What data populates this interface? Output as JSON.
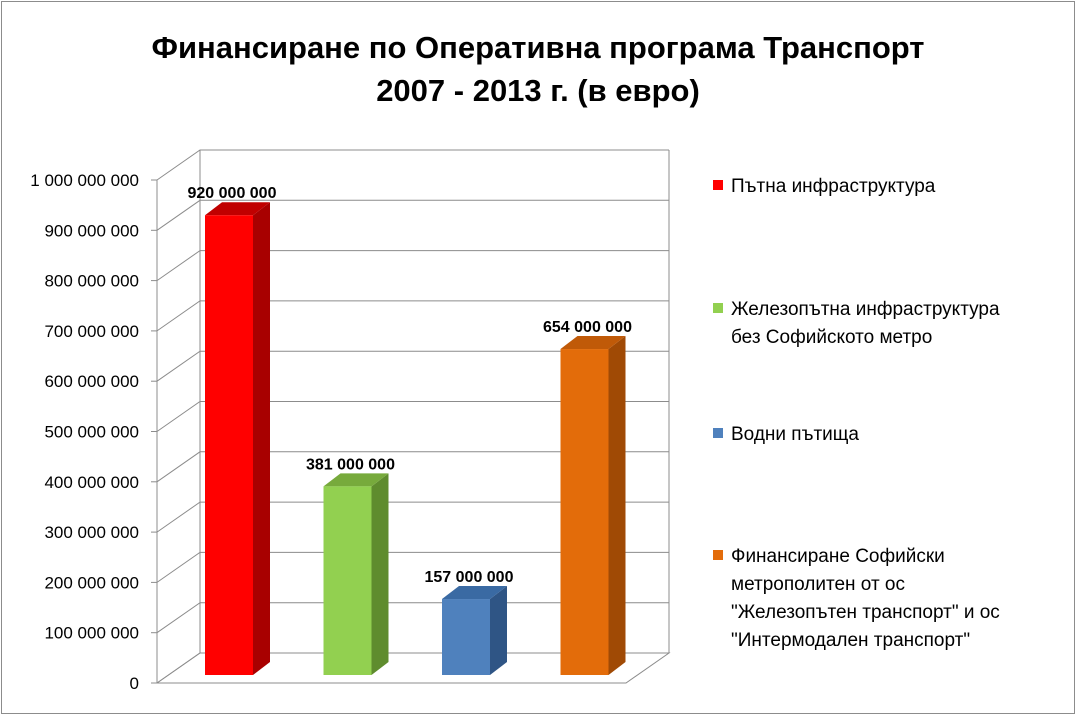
{
  "chart_data": {
    "type": "bar",
    "title_lines": [
      "Финансиране по Оперативна програма Транспорт",
      "2007 - 2013 г. (в евро)"
    ],
    "ylim": [
      0,
      1000000000
    ],
    "y_ticks": [
      "0",
      "100 000 000",
      "200 000 000",
      "300 000 000",
      "400 000 000",
      "500 000 000",
      "600 000 000",
      "700 000 000",
      "800 000 000",
      "900 000 000",
      "1 000 000 000"
    ],
    "grid": true,
    "legend_position": "right",
    "series": [
      {
        "name_lines": [
          "Пътна инфраструктура"
        ],
        "value": 920000000,
        "label": "920 000 000",
        "color": "#ff0000",
        "side": "#a80000",
        "top": "#c00000"
      },
      {
        "name_lines": [
          "Железопътна инфраструктура",
          "без Софийското метро"
        ],
        "value": 381000000,
        "label": "381 000 000",
        "color": "#92d050",
        "side": "#5f8c2e",
        "top": "#77aa3c"
      },
      {
        "name_lines": [
          "Водни пътища"
        ],
        "value": 157000000,
        "label": "157 000 000",
        "color": "#4f81bd",
        "side": "#2f5585",
        "top": "#3a6aa3"
      },
      {
        "name_lines": [
          "Финансиране Софийски",
          "метрополитен от ос",
          "\"Железопътен транспорт\" и ос",
          "\"Интермодален транспорт\""
        ],
        "value": 654000000,
        "label": "654 000 000",
        "color": "#e36c0a",
        "side": "#a04a05",
        "top": "#c05a08"
      }
    ]
  }
}
